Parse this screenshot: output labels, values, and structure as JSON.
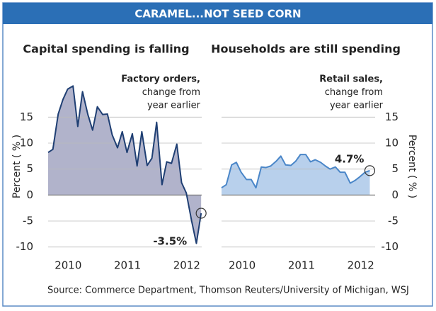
{
  "title": "CARAMEL...NOT SEED CORN",
  "source": "Source: Commerce Department, Thomson Reuters/University of Michigan, WSJ",
  "chart_data": [
    {
      "type": "area",
      "title": "Capital spending is falling",
      "annotation": [
        "Factory orders,",
        "change from",
        "year earlier"
      ],
      "ylabel": "Percent ( % )",
      "y_axis_side": "left",
      "x": [
        2009.71,
        2009.79,
        2009.88,
        2009.96,
        2010.04,
        2010.13,
        2010.21,
        2010.29,
        2010.38,
        2010.46,
        2010.54,
        2010.63,
        2010.71,
        2010.79,
        2010.88,
        2010.96,
        2011.04,
        2011.13,
        2011.21,
        2011.29,
        2011.38,
        2011.46,
        2011.54,
        2011.63,
        2011.71,
        2011.79,
        2011.88,
        2011.96,
        2012.04,
        2012.13,
        2012.21,
        2012.29
      ],
      "values": [
        8.2,
        8.8,
        15.6,
        18.4,
        20.4,
        21,
        13.2,
        19.9,
        15.5,
        12.5,
        17,
        15.5,
        15.6,
        11.6,
        9.1,
        12.2,
        8.2,
        11.8,
        5.6,
        12.2,
        5.7,
        7.1,
        14,
        2,
        6.4,
        6.1,
        9.8,
        2.4,
        0.4,
        -5,
        -9.3,
        -3.5
      ],
      "value_labels": [
        null,
        null,
        null,
        null,
        null,
        null,
        null,
        null,
        null,
        null,
        null,
        null,
        null,
        null,
        null,
        null,
        null,
        null,
        null,
        null,
        null,
        null,
        null,
        null,
        null,
        null,
        null,
        null,
        null,
        null,
        null,
        "-3.5%"
      ],
      "color": "#1f3f73",
      "fill": "#b1b3cb",
      "xlim": [
        2009.71,
        2012.3
      ],
      "xticks": [
        2010,
        2011,
        2012
      ],
      "ylim": [
        -11,
        22
      ],
      "yticks": [
        15,
        10,
        5,
        0,
        -5,
        -10
      ],
      "grid": true
    },
    {
      "type": "area",
      "title": "Households are still spending",
      "annotation": [
        "Retail sales,",
        "change from",
        "year earlier"
      ],
      "ylabel": "Percent ( % )",
      "y_axis_side": "right",
      "x": [
        2009.7,
        2009.78,
        2009.87,
        2009.95,
        2010.03,
        2010.12,
        2010.2,
        2010.28,
        2010.37,
        2010.45,
        2010.53,
        2010.62,
        2010.7,
        2010.78,
        2010.87,
        2010.95,
        2011.03,
        2011.12,
        2011.2,
        2011.28,
        2011.37,
        2011.45,
        2011.53,
        2011.62,
        2011.7,
        2011.78,
        2011.87,
        2011.95,
        2012.03,
        2012.12,
        2012.2
      ],
      "values": [
        1.4,
        2,
        5.8,
        6.3,
        4.4,
        3,
        3,
        1.4,
        5.4,
        5.3,
        5.6,
        6.5,
        7.5,
        5.8,
        5.7,
        6.5,
        7.8,
        7.8,
        6.4,
        6.8,
        6.3,
        5.6,
        5,
        5.4,
        4.4,
        4.4,
        2.3,
        2.8,
        3.5,
        4.4,
        4.7
      ],
      "value_labels": [
        null,
        null,
        null,
        null,
        null,
        null,
        null,
        null,
        null,
        null,
        null,
        null,
        null,
        null,
        null,
        null,
        null,
        null,
        null,
        null,
        null,
        null,
        null,
        null,
        null,
        null,
        null,
        null,
        null,
        null,
        "4.7%"
      ],
      "color": "#4a86c8",
      "fill": "#b8d0ec",
      "xlim": [
        2009.7,
        2012.29
      ],
      "xticks": [
        2010,
        2011,
        2012
      ],
      "ylim": [
        -11,
        22
      ],
      "yticks": [
        15,
        10,
        5,
        0,
        -5,
        -10
      ],
      "grid": true
    }
  ]
}
